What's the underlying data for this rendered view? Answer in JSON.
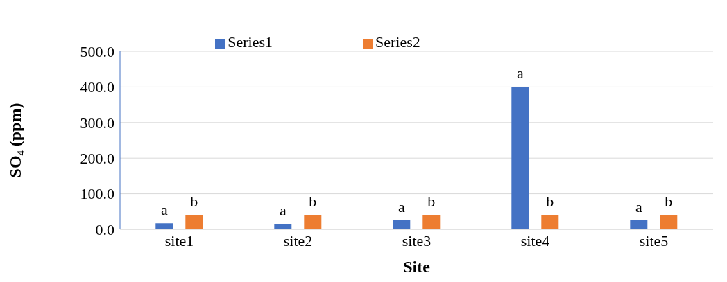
{
  "chart_data": {
    "type": "bar",
    "xlabel": "Site",
    "ylabel": "SO₄ (ppm)",
    "categories": [
      "site1",
      "site2",
      "site3",
      "site4",
      "site5"
    ],
    "series": [
      {
        "name": "Series1",
        "color": "#4472c4",
        "values": [
          17,
          15,
          26,
          400,
          26
        ],
        "value_labels": [
          "a",
          "a",
          "a",
          "a",
          "a"
        ]
      },
      {
        "name": "Series2",
        "color": "#ed7d31",
        "values": [
          40,
          40,
          40,
          40,
          40
        ],
        "value_labels": [
          "b",
          "b",
          "b",
          "b",
          "b"
        ]
      }
    ],
    "ylim": [
      0,
      500
    ],
    "yticks": [
      {
        "value": 0,
        "label": "0.0"
      },
      {
        "value": 100,
        "label": "100.0"
      },
      {
        "value": 200,
        "label": "200.0"
      },
      {
        "value": 300,
        "label": "300.0"
      },
      {
        "value": 400,
        "label": "400.0"
      },
      {
        "value": 500,
        "label": "500.0"
      }
    ],
    "grid": "y",
    "legend": "top"
  }
}
